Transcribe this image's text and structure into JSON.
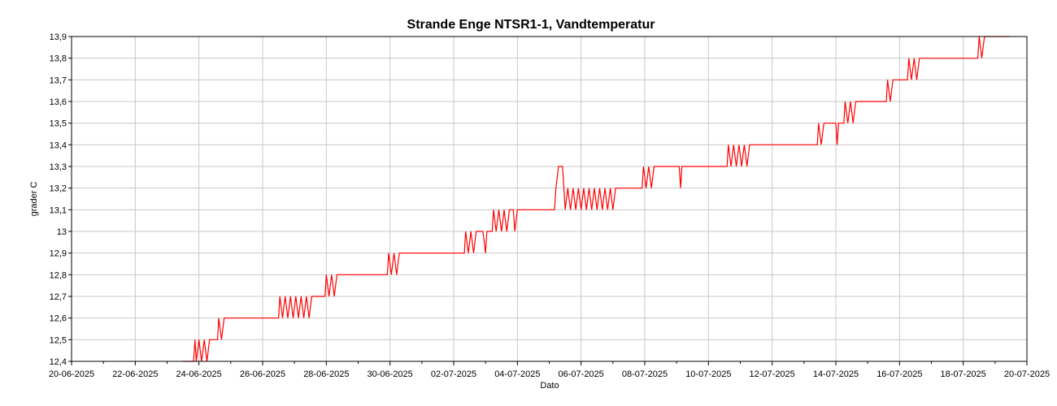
{
  "chart_data": {
    "type": "line",
    "title": "Strande Enge NTSR1-1, Vandtemperatur",
    "xlabel": "Dato",
    "ylabel": "grader C",
    "x_tick_labels": [
      "20-06-2025",
      "22-06-2025",
      "24-06-2025",
      "26-06-2025",
      "28-06-2025",
      "30-06-2025",
      "02-07-2025",
      "04-07-2025",
      "06-07-2025",
      "08-07-2025",
      "10-07-2025",
      "12-07-2025",
      "14-07-2025",
      "16-07-2025",
      "18-07-2025",
      "20-07-2025"
    ],
    "y_tick_labels": [
      "12,4",
      "12,5",
      "12,6",
      "12,7",
      "12,8",
      "12,9",
      "13",
      "13,1",
      "13,2",
      "13,3",
      "13,4",
      "13,5",
      "13,6",
      "13,7",
      "13,8",
      "13,9"
    ],
    "xlim": [
      "2025-06-20",
      "2025-07-20"
    ],
    "ylim": [
      12.4,
      13.9
    ],
    "grid": true,
    "legend": "none",
    "color": "#ff0000",
    "series": [
      {
        "points": [
          [
            "2025-06-23T12:00",
            12.4
          ],
          [
            "2025-06-23T20:00",
            12.4
          ],
          [
            "2025-06-23T21:00",
            12.5
          ],
          [
            "2025-06-23T22:00",
            12.4
          ],
          [
            "2025-06-24T00:00",
            12.5
          ],
          [
            "2025-06-24T02:00",
            12.4
          ],
          [
            "2025-06-24T04:00",
            12.5
          ],
          [
            "2025-06-24T06:00",
            12.4
          ],
          [
            "2025-06-24T08:00",
            12.5
          ],
          [
            "2025-06-24T14:00",
            12.5
          ],
          [
            "2025-06-24T15:00",
            12.6
          ],
          [
            "2025-06-24T17:00",
            12.5
          ],
          [
            "2025-06-24T19:00",
            12.6
          ],
          [
            "2025-06-26T12:00",
            12.6
          ],
          [
            "2025-06-26T13:00",
            12.7
          ],
          [
            "2025-06-26T15:00",
            12.6
          ],
          [
            "2025-06-26T17:00",
            12.7
          ],
          [
            "2025-06-26T19:00",
            12.6
          ],
          [
            "2025-06-26T21:00",
            12.7
          ],
          [
            "2025-06-26T23:00",
            12.6
          ],
          [
            "2025-06-27T01:00",
            12.7
          ],
          [
            "2025-06-27T03:00",
            12.6
          ],
          [
            "2025-06-27T05:00",
            12.7
          ],
          [
            "2025-06-27T07:00",
            12.6
          ],
          [
            "2025-06-27T09:00",
            12.7
          ],
          [
            "2025-06-27T11:00",
            12.6
          ],
          [
            "2025-06-27T13:00",
            12.7
          ],
          [
            "2025-06-27T23:00",
            12.7
          ],
          [
            "2025-06-28T00:00",
            12.8
          ],
          [
            "2025-06-28T02:00",
            12.7
          ],
          [
            "2025-06-28T04:00",
            12.8
          ],
          [
            "2025-06-28T06:00",
            12.7
          ],
          [
            "2025-06-28T08:00",
            12.8
          ],
          [
            "2025-06-29T22:00",
            12.8
          ],
          [
            "2025-06-29T23:00",
            12.9
          ],
          [
            "2025-06-30T01:00",
            12.8
          ],
          [
            "2025-06-30T03:00",
            12.9
          ],
          [
            "2025-06-30T05:00",
            12.8
          ],
          [
            "2025-06-30T07:00",
            12.9
          ],
          [
            "2025-07-02T08:00",
            12.9
          ],
          [
            "2025-07-02T09:00",
            13.0
          ],
          [
            "2025-07-02T11:00",
            12.9
          ],
          [
            "2025-07-02T13:00",
            13.0
          ],
          [
            "2025-07-02T15:00",
            12.9
          ],
          [
            "2025-07-02T17:00",
            13.0
          ],
          [
            "2025-07-02T22:00",
            13.0
          ],
          [
            "2025-07-03T00:00",
            12.9
          ],
          [
            "2025-07-03T01:00",
            13.0
          ],
          [
            "2025-07-03T05:00",
            13.0
          ],
          [
            "2025-07-03T06:00",
            13.1
          ],
          [
            "2025-07-03T08:00",
            13.0
          ],
          [
            "2025-07-03T10:00",
            13.1
          ],
          [
            "2025-07-03T12:00",
            13.0
          ],
          [
            "2025-07-03T14:00",
            13.1
          ],
          [
            "2025-07-03T16:00",
            13.0
          ],
          [
            "2025-07-03T18:00",
            13.1
          ],
          [
            "2025-07-03T21:00",
            13.1
          ],
          [
            "2025-07-03T22:00",
            13.0
          ],
          [
            "2025-07-04T00:00",
            13.1
          ],
          [
            "2025-07-05T04:00",
            13.1
          ],
          [
            "2025-07-05T05:00",
            13.2
          ],
          [
            "2025-07-05T07:00",
            13.3
          ],
          [
            "2025-07-05T10:00",
            13.3
          ],
          [
            "2025-07-05T11:00",
            13.2
          ],
          [
            "2025-07-05T12:00",
            13.1
          ],
          [
            "2025-07-05T14:00",
            13.2
          ],
          [
            "2025-07-05T16:00",
            13.1
          ],
          [
            "2025-07-05T18:00",
            13.2
          ],
          [
            "2025-07-05T20:00",
            13.1
          ],
          [
            "2025-07-05T22:00",
            13.2
          ],
          [
            "2025-07-06T00:00",
            13.1
          ],
          [
            "2025-07-06T02:00",
            13.2
          ],
          [
            "2025-07-06T04:00",
            13.1
          ],
          [
            "2025-07-06T06:00",
            13.2
          ],
          [
            "2025-07-06T08:00",
            13.1
          ],
          [
            "2025-07-06T10:00",
            13.2
          ],
          [
            "2025-07-06T12:00",
            13.1
          ],
          [
            "2025-07-06T14:00",
            13.2
          ],
          [
            "2025-07-06T16:00",
            13.1
          ],
          [
            "2025-07-06T18:00",
            13.2
          ],
          [
            "2025-07-06T20:00",
            13.1
          ],
          [
            "2025-07-06T22:00",
            13.2
          ],
          [
            "2025-07-07T00:00",
            13.1
          ],
          [
            "2025-07-07T02:00",
            13.2
          ],
          [
            "2025-07-07T22:00",
            13.2
          ],
          [
            "2025-07-07T23:00",
            13.3
          ],
          [
            "2025-07-08T01:00",
            13.2
          ],
          [
            "2025-07-08T03:00",
            13.3
          ],
          [
            "2025-07-08T05:00",
            13.2
          ],
          [
            "2025-07-08T07:00",
            13.3
          ],
          [
            "2025-07-09T02:00",
            13.3
          ],
          [
            "2025-07-09T03:00",
            13.2
          ],
          [
            "2025-07-09T04:00",
            13.3
          ],
          [
            "2025-07-10T14:00",
            13.3
          ],
          [
            "2025-07-10T15:00",
            13.4
          ],
          [
            "2025-07-10T17:00",
            13.3
          ],
          [
            "2025-07-10T19:00",
            13.4
          ],
          [
            "2025-07-10T21:00",
            13.3
          ],
          [
            "2025-07-10T23:00",
            13.4
          ],
          [
            "2025-07-11T01:00",
            13.3
          ],
          [
            "2025-07-11T03:00",
            13.4
          ],
          [
            "2025-07-11T05:00",
            13.3
          ],
          [
            "2025-07-11T07:00",
            13.4
          ],
          [
            "2025-07-13T10:00",
            13.4
          ],
          [
            "2025-07-13T11:00",
            13.5
          ],
          [
            "2025-07-13T13:00",
            13.4
          ],
          [
            "2025-07-13T15:00",
            13.5
          ],
          [
            "2025-07-14T00:00",
            13.5
          ],
          [
            "2025-07-14T01:00",
            13.4
          ],
          [
            "2025-07-14T02:00",
            13.5
          ],
          [
            "2025-07-14T06:00",
            13.5
          ],
          [
            "2025-07-14T07:00",
            13.6
          ],
          [
            "2025-07-14T09:00",
            13.5
          ],
          [
            "2025-07-14T11:00",
            13.6
          ],
          [
            "2025-07-14T13:00",
            13.5
          ],
          [
            "2025-07-14T15:00",
            13.6
          ],
          [
            "2025-07-15T14:00",
            13.6
          ],
          [
            "2025-07-15T15:00",
            13.7
          ],
          [
            "2025-07-15T17:00",
            13.6
          ],
          [
            "2025-07-15T19:00",
            13.7
          ],
          [
            "2025-07-16T06:00",
            13.7
          ],
          [
            "2025-07-16T07:00",
            13.8
          ],
          [
            "2025-07-16T09:00",
            13.7
          ],
          [
            "2025-07-16T11:00",
            13.8
          ],
          [
            "2025-07-16T13:00",
            13.7
          ],
          [
            "2025-07-16T15:00",
            13.8
          ],
          [
            "2025-07-18T11:00",
            13.8
          ],
          [
            "2025-07-18T12:00",
            13.9
          ],
          [
            "2025-07-18T14:00",
            13.8
          ],
          [
            "2025-07-18T16:00",
            13.9
          ],
          [
            "2025-07-19T11:00",
            13.9
          ]
        ]
      }
    ]
  }
}
